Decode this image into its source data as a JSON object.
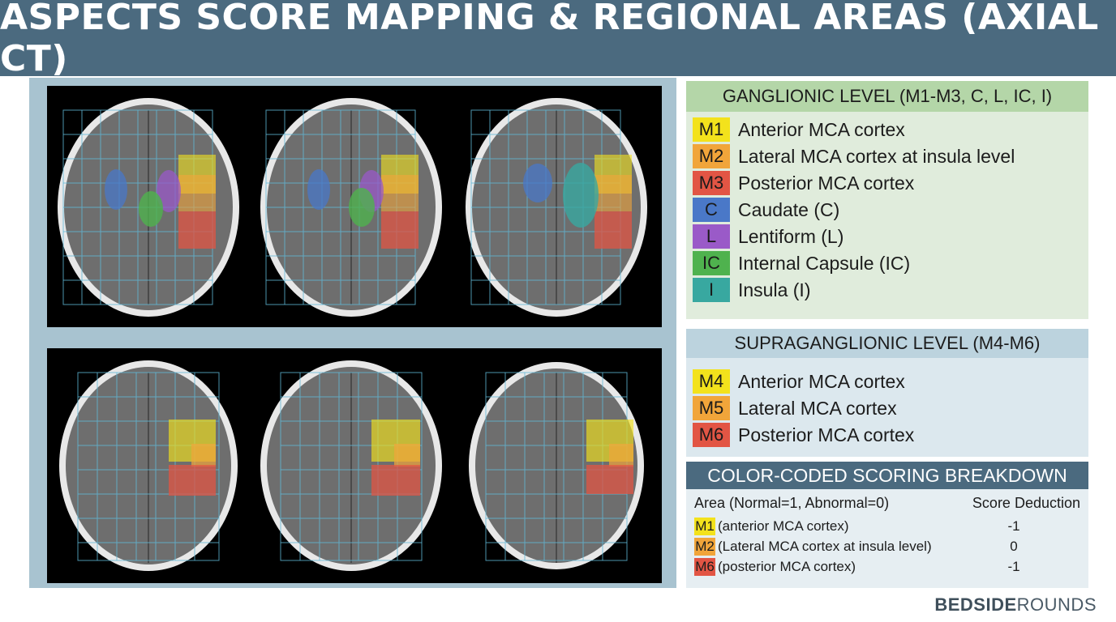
{
  "title": "ASPECTS SCORE MAPPING & REGIONAL AREAS (AXIAL CT)",
  "colors": {
    "M1": "#f3e21c",
    "M2": "#f1a53a",
    "M3": "#e25544",
    "C": "#4a78c8",
    "L": "#9a5ac8",
    "IC": "#4fb24e",
    "I": "#38a8a0",
    "M4": "#f3e21c",
    "M5": "#f1a53a",
    "M6": "#e25544"
  },
  "ganglionic": {
    "header": "GANGLIONIC LEVEL (M1-M3, C, L, IC, I)",
    "items": [
      {
        "code": "M1",
        "label": "Anterior MCA cortex"
      },
      {
        "code": "M2",
        "label": "Lateral MCA cortex at insula level"
      },
      {
        "code": "M3",
        "label": "Posterior MCA cortex"
      },
      {
        "code": "C",
        "label": "Caudate (C)"
      },
      {
        "code": "L",
        "label": "Lentiform (L)"
      },
      {
        "code": "IC",
        "label": "Internal Capsule (IC)"
      },
      {
        "code": "I",
        "label": "Insula (I)"
      }
    ]
  },
  "supraganglionic": {
    "header": "SUPRAGANGLIONIC LEVEL (M4-M6)",
    "items": [
      {
        "code": "M4",
        "label": "Anterior MCA cortex"
      },
      {
        "code": "M5",
        "label": "Lateral MCA cortex"
      },
      {
        "code": "M6",
        "label": "Posterior MCA cortex"
      }
    ]
  },
  "scoring": {
    "header": "COLOR-CODED SCORING BREAKDOWN",
    "col_area": "Area (Normal=1, Abnormal=0)",
    "col_score": "Score Deduction",
    "rows": [
      {
        "code": "M1",
        "desc": "(anterior MCA cortex)",
        "score": "-1"
      },
      {
        "code": "M2",
        "desc": "(Lateral MCA cortex at insula level)",
        "score": "0"
      },
      {
        "code": "M6",
        "desc": "(posterior MCA cortex)",
        "score": "-1"
      }
    ]
  },
  "brand": {
    "bold": "BEDSIDE",
    "light": "ROUNDS"
  }
}
